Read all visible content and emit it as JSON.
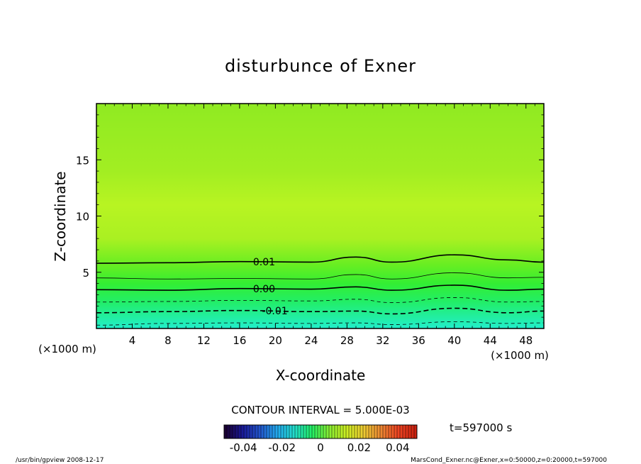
{
  "chart_data": {
    "type": "contour",
    "title": "disturbunce of Exner",
    "xlabel": "X-coordinate",
    "ylabel": "Z-coordinate",
    "x_unit": "(×1000 m)",
    "y_unit": "(×1000 m)",
    "xlim": [
      0,
      50
    ],
    "ylim": [
      0,
      20
    ],
    "x_ticks": [
      4,
      8,
      12,
      16,
      20,
      24,
      28,
      32,
      36,
      40,
      44,
      48
    ],
    "y_ticks": [
      5,
      10,
      15
    ],
    "contour_interval_text": "CONTOUR INTERVAL = 5.000E-03",
    "contour_lines": [
      {
        "level": 0.01,
        "label": "0.01",
        "style": "solid-bold",
        "label_x": 17.5,
        "points": [
          [
            0,
            5.8
          ],
          [
            8,
            5.85
          ],
          [
            16,
            5.95
          ],
          [
            24,
            5.9
          ],
          [
            29,
            6.35
          ],
          [
            33,
            5.9
          ],
          [
            40,
            6.55
          ],
          [
            46,
            6.1
          ],
          [
            50,
            5.9
          ]
        ]
      },
      {
        "level": 0.005,
        "label": "",
        "style": "solid-thin",
        "points": [
          [
            0,
            4.5
          ],
          [
            8,
            4.4
          ],
          [
            16,
            4.45
          ],
          [
            24,
            4.4
          ],
          [
            29,
            4.8
          ],
          [
            33,
            4.4
          ],
          [
            40,
            4.95
          ],
          [
            46,
            4.5
          ],
          [
            50,
            4.55
          ]
        ]
      },
      {
        "level": 0.0,
        "label": "0.00",
        "style": "solid-bold",
        "label_x": 17.5,
        "points": [
          [
            0,
            3.45
          ],
          [
            8,
            3.4
          ],
          [
            16,
            3.55
          ],
          [
            24,
            3.5
          ],
          [
            29,
            3.7
          ],
          [
            33,
            3.4
          ],
          [
            40,
            3.85
          ],
          [
            46,
            3.4
          ],
          [
            50,
            3.5
          ]
        ]
      },
      {
        "level": -0.005,
        "label": "",
        "style": "dashed-thin",
        "points": [
          [
            0,
            2.35
          ],
          [
            8,
            2.4
          ],
          [
            16,
            2.5
          ],
          [
            24,
            2.45
          ],
          [
            29,
            2.6
          ],
          [
            33,
            2.3
          ],
          [
            40,
            2.75
          ],
          [
            46,
            2.35
          ],
          [
            50,
            2.4
          ]
        ]
      },
      {
        "level": -0.01,
        "label": "-0.01",
        "style": "dashed-bold",
        "label_x": 18.5,
        "points": [
          [
            0,
            1.4
          ],
          [
            8,
            1.5
          ],
          [
            16,
            1.6
          ],
          [
            24,
            1.5
          ],
          [
            29,
            1.55
          ],
          [
            33,
            1.3
          ],
          [
            40,
            1.8
          ],
          [
            46,
            1.4
          ],
          [
            50,
            1.55
          ]
        ]
      },
      {
        "level": -0.015,
        "label": "",
        "style": "dashed-thin",
        "points": [
          [
            0,
            0.3
          ],
          [
            8,
            0.45
          ],
          [
            16,
            0.5
          ],
          [
            24,
            0.45
          ],
          [
            29,
            0.5
          ],
          [
            33,
            0.35
          ],
          [
            40,
            0.6
          ],
          [
            46,
            0.45
          ],
          [
            50,
            0.5
          ]
        ]
      }
    ],
    "colorbar": {
      "ticks": [
        "-0.04",
        "-0.02",
        "0",
        "0.02",
        "0.04"
      ],
      "range": [
        -0.05,
        0.05
      ],
      "palette": [
        "#1a0033",
        "#1a1a99",
        "#2255cc",
        "#22aaee",
        "#22ddcc",
        "#22ee66",
        "#88ee33",
        "#ccee22",
        "#eecc33",
        "#ee8833",
        "#ee4422",
        "#cc2211"
      ]
    },
    "time_label": "t=597000 s"
  },
  "footer": {
    "left": "/usr/bin/gpview   2008-12-17",
    "right": "MarsCond_Exner.nc@Exner,x=0:50000,z=0:20000,t=597000"
  }
}
